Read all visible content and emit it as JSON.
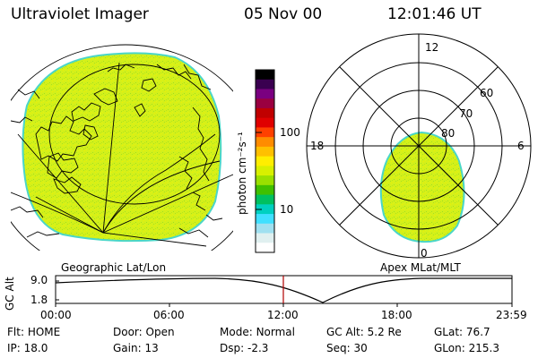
{
  "header": {
    "title": "Ultraviolet Imager",
    "date": "05 Nov 00",
    "time": "12:01:46 UT"
  },
  "colorbar": {
    "unit_label": "photon cm⁻²s⁻¹",
    "tick_labels": [
      "100",
      "10"
    ],
    "colors": [
      "#000000",
      "#3a0050",
      "#7a0080",
      "#9a0040",
      "#c00000",
      "#e00000",
      "#ff4000",
      "#ff8c00",
      "#ffc000",
      "#ffee00",
      "#d8f000",
      "#9ae000",
      "#40c000",
      "#00c060",
      "#00d0c0",
      "#40e0ff",
      "#a0e0f0",
      "#e0f0f0",
      "#ffffff"
    ]
  },
  "geo_panel": {
    "label": "Geographic Lat/Lon",
    "fill_color": "#d4f01a",
    "edge_color": "#4ad6c8"
  },
  "polar_panel": {
    "label": "Apex MLat/MLT",
    "mlt_labels": {
      "top": "12",
      "left": "18",
      "right": "6",
      "bottom": "0"
    },
    "lat_labels": [
      "60",
      "70",
      "80"
    ]
  },
  "timeline": {
    "axis_label": "GC Alt",
    "y_ticks": [
      "9.0",
      "1.8"
    ],
    "x_ticks": [
      "00:00",
      "06:00",
      "12:00",
      "18:00",
      "23:59"
    ],
    "marker_time": "12:01"
  },
  "status": {
    "row1": [
      {
        "label": "Flt:",
        "value": "HOME"
      },
      {
        "label": "Door:",
        "value": "Open"
      },
      {
        "label": "Mode:",
        "value": "Normal"
      },
      {
        "label": "GC Alt:",
        "value": "5.2 Re"
      },
      {
        "label": "GLat:",
        "value": "76.7"
      }
    ],
    "row2": [
      {
        "label": "IP:",
        "value": "18.0"
      },
      {
        "label": "Gain:",
        "value": "13"
      },
      {
        "label": "Dsp:",
        "value": "-2.3"
      },
      {
        "label": "Seq:",
        "value": "30"
      },
      {
        "label": "GLon:",
        "value": "215.3"
      }
    ]
  }
}
